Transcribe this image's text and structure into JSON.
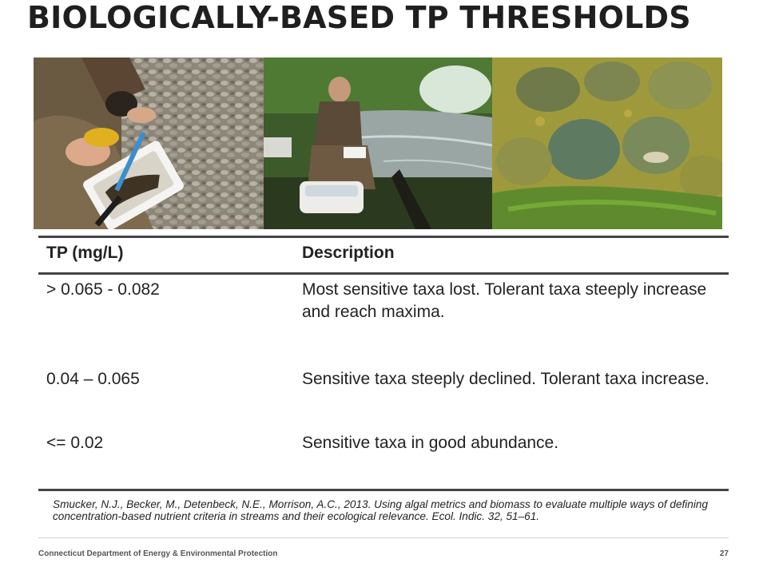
{
  "slide": {
    "title": "BIOLOGICALLY-BASED TP THRESHOLDS"
  },
  "photos": [
    {
      "name": "photo-sampling-tray"
    },
    {
      "name": "photo-river-fieldwork"
    },
    {
      "name": "photo-algae-rocks"
    }
  ],
  "table": {
    "headers": [
      "TP (mg/L)",
      "Description"
    ],
    "rows": [
      {
        "tp": "> 0.065 - 0.082",
        "description": "Most sensitive taxa lost.  Tolerant taxa steeply increase and reach maxima."
      },
      {
        "tp": "0.04 – 0.065",
        "description": "Sensitive taxa steeply declined.  Tolerant taxa increase."
      },
      {
        "tp": "<= 0.02",
        "description": "Sensitive taxa in good abundance."
      }
    ]
  },
  "citation": "Smucker, N.J., Becker, M., Detenbeck, N.E., Morrison, A.C., 2013. Using algal metrics and biomass to evaluate multiple ways of defining concentration-based nutrient  criteria in streams and their ecological relevance. Ecol. Indic. 32, 51–61.",
  "footer": {
    "organization": "Connecticut Department of Energy & Environmental Protection",
    "page_number": "27"
  }
}
